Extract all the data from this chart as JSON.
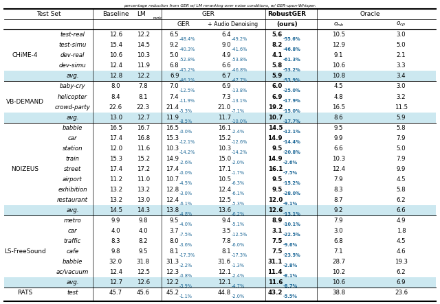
{
  "title": "percentage reduction from GER w/ LM reranking over noise conditions, w/ GER-upon-Whisper.",
  "sections": [
    {
      "name": "CHiME-4",
      "rows": [
        {
          "sub": "test-real",
          "baseline": "12.6",
          "lm": "12.2",
          "ger": "6.5",
          "ger_pct": "-48.4%",
          "ger_ad": "6.4",
          "ger_ad_pct": "-49.2%",
          "robust": "5.6",
          "robust_pct": "-55.6%",
          "robust_bold": true,
          "o_nb": "10.5",
          "o_cp": "3.0",
          "avg_row": false
        },
        {
          "sub": "test-simu",
          "baseline": "15.4",
          "lm": "14.5",
          "ger": "9.2",
          "ger_pct": "-40.3%",
          "ger_ad": "9.0",
          "ger_ad_pct": "-41.6%",
          "robust": "8.2",
          "robust_pct": "-46.8%",
          "robust_bold": true,
          "o_nb": "12.9",
          "o_cp": "5.0",
          "avg_row": false
        },
        {
          "sub": "dev-real",
          "baseline": "10.6",
          "lm": "10.3",
          "ger": "5.0",
          "ger_pct": "-52.8%",
          "ger_ad": "4.9",
          "ger_ad_pct": "-53.8%",
          "robust": "4.1",
          "robust_pct": "-61.3%",
          "robust_bold": true,
          "o_nb": "9.1",
          "o_cp": "2.1",
          "avg_row": false
        },
        {
          "sub": "dev-simu",
          "baseline": "12.4",
          "lm": "11.9",
          "ger": "6.8",
          "ger_pct": "-45.2%",
          "ger_ad": "6.6",
          "ger_ad_pct": "-46.8%",
          "robust": "5.8",
          "robust_pct": "-53.2%",
          "robust_bold": true,
          "o_nb": "10.6",
          "o_cp": "3.3",
          "avg_row": false
        },
        {
          "sub": "avg.",
          "baseline": "12.8",
          "lm": "12.2",
          "ger": "6.9",
          "ger_pct": "-46.1%",
          "ger_ad": "6.7",
          "ger_ad_pct": "-47.7%",
          "robust": "5.9",
          "robust_pct": "-53.9%",
          "robust_bold": true,
          "o_nb": "10.8",
          "o_cp": "3.4",
          "avg_row": true
        }
      ]
    },
    {
      "name": "VB-DEMAND",
      "rows": [
        {
          "sub": "baby-cry",
          "baseline": "8.0",
          "lm": "7.8",
          "ger": "7.0",
          "ger_pct": "-12.5%",
          "ger_ad": "6.9",
          "ger_ad_pct": "-13.8%",
          "robust": "6.0",
          "robust_pct": "-25.0%",
          "robust_bold": true,
          "o_nb": "4.5",
          "o_cp": "3.0",
          "avg_row": false
        },
        {
          "sub": "helicopter",
          "baseline": "8.4",
          "lm": "8.1",
          "ger": "7.4",
          "ger_pct": "-11.9%",
          "ger_ad": "7.3",
          "ger_ad_pct": "-13.1%",
          "robust": "6.9",
          "robust_pct": "-17.9%",
          "robust_bold": true,
          "o_nb": "4.8",
          "o_cp": "3.2",
          "avg_row": false
        },
        {
          "sub": "crowd-party",
          "baseline": "22.6",
          "lm": "22.3",
          "ger": "21.4",
          "ger_pct": "-5.3%",
          "ger_ad": "21.0",
          "ger_ad_pct": "-7.1%",
          "robust": "19.2",
          "robust_pct": "-15.0%",
          "robust_bold": true,
          "o_nb": "16.5",
          "o_cp": "11.5",
          "avg_row": false
        },
        {
          "sub": "avg.",
          "baseline": "13.0",
          "lm": "12.7",
          "ger": "11.9",
          "ger_pct": "-8.5%",
          "ger_ad": "11.7",
          "ger_ad_pct": "-10.0%",
          "robust": "10.7",
          "robust_pct": "-17.7%",
          "robust_bold": true,
          "o_nb": "8.6",
          "o_cp": "5.9",
          "avg_row": true
        }
      ]
    },
    {
      "name": "NOIZEUS",
      "rows": [
        {
          "sub": "babble",
          "baseline": "16.5",
          "lm": "16.7",
          "ger": "16.5",
          "ger_pct": "-0.0%",
          "ger_ad": "16.1",
          "ger_ad_pct": "-2.4%",
          "robust": "14.5",
          "robust_pct": "-12.1%",
          "robust_bold": true,
          "o_nb": "9.5",
          "o_cp": "5.8",
          "avg_row": false
        },
        {
          "sub": "car",
          "baseline": "17.4",
          "lm": "16.8",
          "ger": "15.3",
          "ger_pct": "-12.1%",
          "ger_ad": "15.2",
          "ger_ad_pct": "-12.6%",
          "robust": "14.9",
          "robust_pct": "-14.4%",
          "robust_bold": true,
          "o_nb": "9.9",
          "o_cp": "7.9",
          "avg_row": false
        },
        {
          "sub": "station",
          "baseline": "12.0",
          "lm": "11.6",
          "ger": "10.3",
          "ger_pct": "-14.2%",
          "ger_ad": "10.3",
          "ger_ad_pct": "-14.2%",
          "robust": "9.5",
          "robust_pct": "-20.8%",
          "robust_bold": true,
          "o_nb": "6.6",
          "o_cp": "5.0",
          "avg_row": false
        },
        {
          "sub": "train",
          "baseline": "15.3",
          "lm": "15.2",
          "ger": "14.9",
          "ger_pct": "-2.6%",
          "ger_ad": "15.0",
          "ger_ad_pct": "-2.0%",
          "robust": "14.9",
          "robust_pct": "-2.6%",
          "robust_bold": true,
          "o_nb": "10.3",
          "o_cp": "7.9",
          "avg_row": false
        },
        {
          "sub": "street",
          "baseline": "17.4",
          "lm": "17.2",
          "ger": "17.4",
          "ger_pct": "-0.0%",
          "ger_ad": "17.1",
          "ger_ad_pct": "-1.7%",
          "robust": "16.1",
          "robust_pct": "-7.5%",
          "robust_bold": true,
          "o_nb": "12.4",
          "o_cp": "9.9",
          "avg_row": false
        },
        {
          "sub": "airport",
          "baseline": "11.2",
          "lm": "11.0",
          "ger": "10.7",
          "ger_pct": "-4.5%",
          "ger_ad": "10.5",
          "ger_ad_pct": "-6.3%",
          "robust": "9.5",
          "robust_pct": "-15.2%",
          "robust_bold": true,
          "o_nb": "7.9",
          "o_cp": "4.5",
          "avg_row": false
        },
        {
          "sub": "exhibition",
          "baseline": "13.2",
          "lm": "13.2",
          "ger": "12.8",
          "ger_pct": "-3.0%",
          "ger_ad": "12.4",
          "ger_ad_pct": "-6.1%",
          "robust": "9.5",
          "robust_pct": "-28.0%",
          "robust_bold": true,
          "o_nb": "8.3",
          "o_cp": "5.8",
          "avg_row": false
        },
        {
          "sub": "restaurant",
          "baseline": "13.2",
          "lm": "13.0",
          "ger": "12.4",
          "ger_pct": "-6.1%",
          "ger_ad": "12.5",
          "ger_ad_pct": "-5.3%",
          "robust": "12.0",
          "robust_pct": "-9.1%",
          "robust_bold": true,
          "o_nb": "8.7",
          "o_cp": "6.2",
          "avg_row": false
        },
        {
          "sub": "avg.",
          "baseline": "14.5",
          "lm": "14.3",
          "ger": "13.8",
          "ger_pct": "-4.8%",
          "ger_ad": "13.6",
          "ger_ad_pct": "-6.2%",
          "robust": "12.6",
          "robust_pct": "-13.1%",
          "robust_bold": true,
          "o_nb": "9.2",
          "o_cp": "6.6",
          "avg_row": true
        }
      ]
    },
    {
      "name": "LS-FreeSound",
      "rows": [
        {
          "sub": "metro",
          "baseline": "9.9",
          "lm": "9.8",
          "ger": "9.5",
          "ger_pct": "-4.0%",
          "ger_ad": "9.4",
          "ger_ad_pct": "-5.1%",
          "robust": "8.9",
          "robust_pct": "-10.1%",
          "robust_bold": true,
          "o_nb": "7.9",
          "o_cp": "4.9",
          "avg_row": false
        },
        {
          "sub": "car",
          "baseline": "4.0",
          "lm": "4.0",
          "ger": "3.7",
          "ger_pct": "-7.5%",
          "ger_ad": "3.5",
          "ger_ad_pct": "-12.5%",
          "robust": "3.1",
          "robust_pct": "-22.5%",
          "robust_bold": true,
          "o_nb": "3.0",
          "o_cp": "1.8",
          "avg_row": false
        },
        {
          "sub": "traffic",
          "baseline": "8.3",
          "lm": "8.2",
          "ger": "8.0",
          "ger_pct": "-3.6%",
          "ger_ad": "7.8",
          "ger_ad_pct": "-6.0%",
          "robust": "7.5",
          "robust_pct": "-9.6%",
          "robust_bold": true,
          "o_nb": "6.8",
          "o_cp": "4.5",
          "avg_row": false
        },
        {
          "sub": "cafe",
          "baseline": "9.8",
          "lm": "9.5",
          "ger": "8.1",
          "ger_pct": "-17.3%",
          "ger_ad": "8.1",
          "ger_ad_pct": "-17.3%",
          "robust": "7.5",
          "robust_pct": "-23.5%",
          "robust_bold": true,
          "o_nb": "7.1",
          "o_cp": "4.6",
          "avg_row": false
        },
        {
          "sub": "babble",
          "baseline": "32.0",
          "lm": "31.8",
          "ger": "31.3",
          "ger_pct": "-2.2%",
          "ger_ad": "31.6",
          "ger_ad_pct": "-1.3%",
          "robust": "31.1",
          "robust_pct": "-2.8%",
          "robust_bold": true,
          "o_nb": "28.7",
          "o_cp": "19.3",
          "avg_row": false
        },
        {
          "sub": "ac/vacuum",
          "baseline": "12.4",
          "lm": "12.5",
          "ger": "12.3",
          "ger_pct": "-0.8%",
          "ger_ad": "12.1",
          "ger_ad_pct": "-2.4%",
          "robust": "11.4",
          "robust_pct": "-8.1%",
          "robust_bold": true,
          "o_nb": "10.2",
          "o_cp": "6.2",
          "avg_row": false
        },
        {
          "sub": "avg.",
          "baseline": "12.7",
          "lm": "12.6",
          "ger": "12.2",
          "ger_pct": "-3.9%",
          "ger_ad": "12.1",
          "ger_ad_pct": "-4.7%",
          "robust": "11.6",
          "robust_pct": "-8.7%",
          "robust_bold": true,
          "o_nb": "10.6",
          "o_cp": "6.9",
          "avg_row": true
        }
      ]
    },
    {
      "name": "RATS",
      "rows": [
        {
          "sub": "test",
          "baseline": "45.7",
          "lm": "45.6",
          "ger": "45.2",
          "ger_pct": "-1.1%",
          "ger_ad": "44.8",
          "ger_ad_pct": "-2.0%",
          "robust": "43.2",
          "robust_pct": "-5.5%",
          "robust_bold": true,
          "o_nb": "38.8",
          "o_cp": "23.6",
          "avg_row": false
        }
      ]
    }
  ],
  "highlight_color": "#cce8f0",
  "pct_color": "#1a6696",
  "col_x": {
    "section": 0.048,
    "sub": 0.158,
    "baseline": 0.258,
    "lm": 0.322,
    "ger": 0.415,
    "ger_ad": 0.53,
    "robust": 0.655,
    "o_nb": 0.775,
    "o_cp": 0.92
  },
  "vlines": [
    0.205,
    0.365,
    0.605,
    0.725
  ],
  "header_fontsize": 6.5,
  "data_fontsize": 6.2,
  "small_fontsize": 4.8
}
